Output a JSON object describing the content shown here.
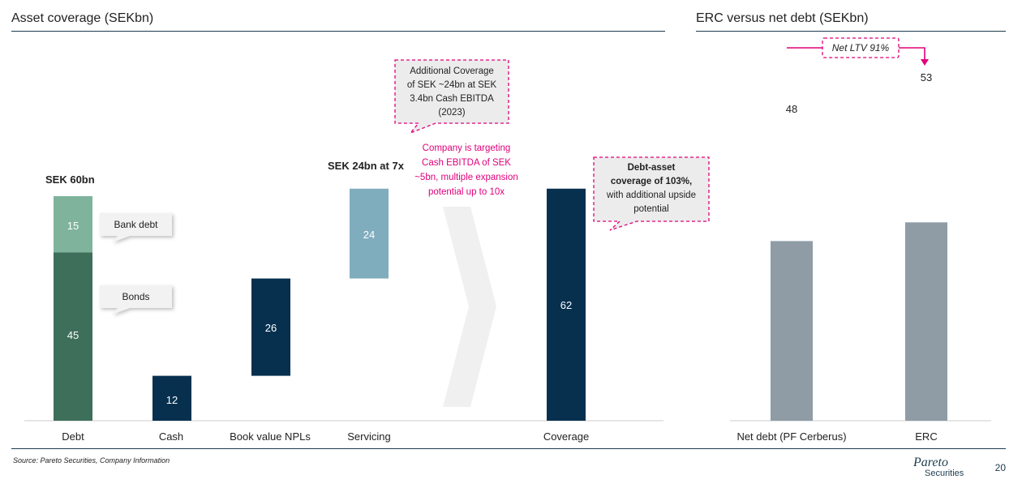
{
  "left_title": "Asset coverage (SEKbn)",
  "right_title": "ERC versus net debt (SEKbn)",
  "left_chart_callouts": {
    "debt_total": "SEK 60bn",
    "bank_debt": "Bank debt",
    "bonds": "Bonds",
    "servicing_note": "SEK 24bn at 7x",
    "additional_coverage": [
      "Additional Coverage",
      "of SEK ~24bn at SEK",
      "3.4bn Cash EBITDA",
      "(2023)"
    ],
    "company_targeting": [
      "Company is targeting",
      "Cash EBITDA of SEK",
      "~5bn, multiple expansion",
      "potential up to 10x"
    ],
    "debt_asset_bold": [
      "Debt-asset",
      "coverage of 103%,"
    ],
    "debt_asset_rest": [
      "with additional upside",
      "potential"
    ]
  },
  "right_chart_callouts": {
    "net_ltv": "Net LTV 91%"
  },
  "source": "Source: Pareto Securities, Company Information",
  "page_number": "20",
  "logo": {
    "line1": "Pareto",
    "line2": "Securities"
  },
  "colors": {
    "bank_debt": "#7fb39c",
    "bonds": "#3e6f5a",
    "dark_navy": "#07304f",
    "servicing": "#80adbd",
    "grey_bar": "#8f9ca5",
    "magenta": "#e0007a",
    "rule": "#1d3c4e"
  },
  "chart_data": [
    {
      "type": "bar",
      "title": "Asset coverage (SEKbn)",
      "categories": [
        "Debt",
        "Cash",
        "Book value NPLs",
        "Servicing",
        "Coverage"
      ],
      "series": [
        {
          "name": "Bonds",
          "values": [
            45,
            null,
            null,
            null,
            null
          ]
        },
        {
          "name": "Bank debt",
          "values": [
            15,
            null,
            null,
            null,
            null
          ]
        },
        {
          "values": [
            null,
            12,
            26,
            24,
            62
          ]
        }
      ],
      "waterfall_base": [
        0,
        0,
        12,
        38,
        0
      ],
      "display_labels": [
        "45",
        "15",
        "12",
        "26",
        "24",
        "62"
      ],
      "ylim": [
        0,
        64
      ]
    },
    {
      "type": "bar",
      "title": "ERC versus net debt (SEKbn)",
      "categories": [
        "Net debt (PF Cerberus)",
        "ERC"
      ],
      "values": [
        48,
        53
      ],
      "ylim": [
        0,
        64
      ]
    }
  ]
}
